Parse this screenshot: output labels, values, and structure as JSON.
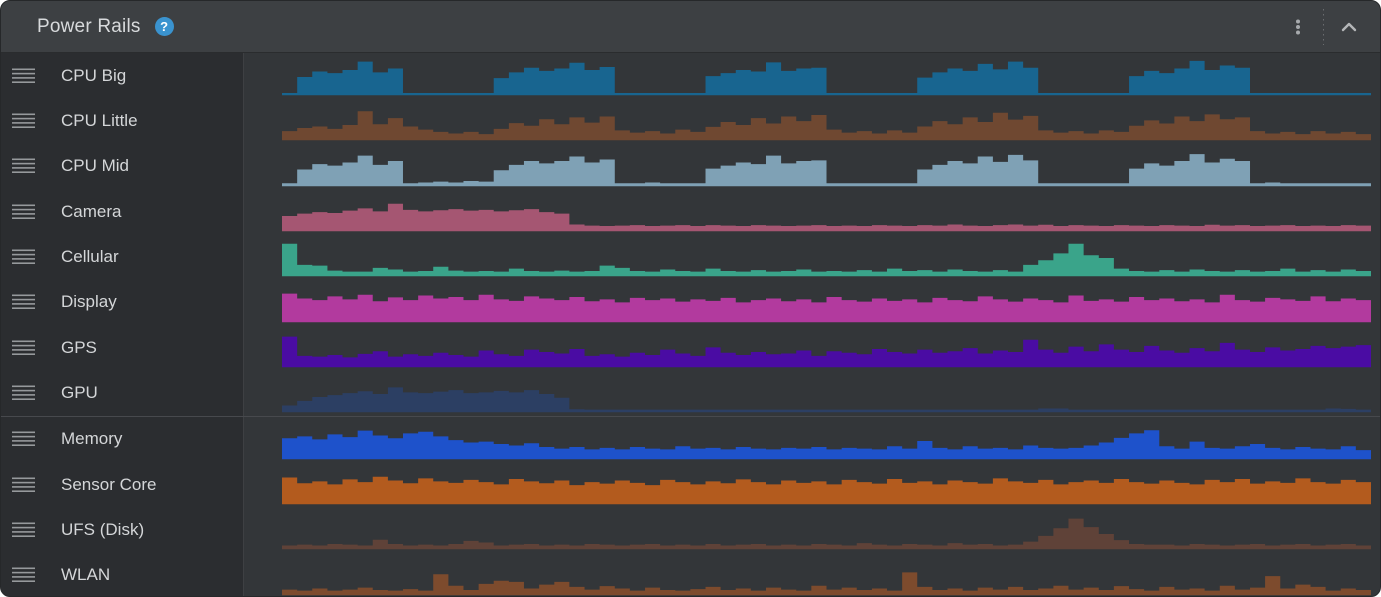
{
  "header": {
    "title": "Power Rails",
    "help_label": "?",
    "icons": {
      "help": "help-question-icon",
      "more": "kebab-menu-icon",
      "collapse": "chevron-up-icon"
    }
  },
  "colors": {
    "header_bg": "#3d4043",
    "sidebar_bg": "#2b2d30",
    "chart_bg": "#333639",
    "title_text": "#d8dadc",
    "label_text": "#d4d6d8",
    "help_icon_bg": "#3a93cf",
    "icon_gray": "#a7aaad",
    "group_separator": "#47494d"
  },
  "chart_data": {
    "type": "area",
    "title": "Power Rails",
    "units": "relative-height-percent",
    "ylim": [
      0,
      100
    ],
    "legend_position": "left-sidebar",
    "grid": false,
    "rails": [
      {
        "label": "CPU Big",
        "color": "#186590",
        "group_start": false,
        "values": [
          6,
          48,
          62,
          58,
          66,
          88,
          60,
          70,
          6,
          6,
          6,
          6,
          6,
          6,
          45,
          60,
          72,
          64,
          70,
          85,
          66,
          74,
          6,
          6,
          6,
          6,
          6,
          6,
          50,
          58,
          66,
          62,
          86,
          64,
          70,
          72,
          6,
          6,
          6,
          6,
          6,
          6,
          46,
          60,
          70,
          64,
          82,
          68,
          88,
          72,
          6,
          6,
          6,
          6,
          6,
          6,
          50,
          64,
          58,
          70,
          90,
          66,
          78,
          72,
          6,
          6,
          6,
          6,
          6,
          6,
          6,
          6
        ]
      },
      {
        "label": "CPU Little",
        "color": "#6f4831",
        "group_start": false,
        "values": [
          24,
          32,
          36,
          30,
          40,
          76,
          42,
          58,
          36,
          28,
          22,
          18,
          22,
          16,
          30,
          45,
          38,
          55,
          42,
          60,
          46,
          62,
          26,
          20,
          24,
          18,
          28,
          22,
          35,
          48,
          40,
          58,
          44,
          62,
          50,
          66,
          28,
          20,
          24,
          18,
          26,
          20,
          36,
          50,
          42,
          60,
          48,
          72,
          54,
          64,
          26,
          20,
          24,
          18,
          26,
          22,
          38,
          52,
          44,
          62,
          50,
          68,
          55,
          60,
          24,
          18,
          22,
          16,
          24,
          18,
          22,
          16
        ]
      },
      {
        "label": "CPU Mid",
        "color": "#7fa1b5",
        "group_start": false,
        "values": [
          8,
          44,
          58,
          54,
          62,
          80,
          56,
          66,
          8,
          10,
          12,
          10,
          14,
          12,
          42,
          56,
          66,
          60,
          66,
          78,
          62,
          70,
          8,
          8,
          10,
          8,
          8,
          8,
          46,
          54,
          62,
          58,
          80,
          60,
          66,
          68,
          8,
          8,
          8,
          8,
          8,
          8,
          44,
          56,
          66,
          60,
          78,
          64,
          82,
          68,
          8,
          8,
          8,
          8,
          8,
          8,
          46,
          60,
          54,
          66,
          84,
          62,
          72,
          66,
          8,
          10,
          8,
          8,
          8,
          8,
          8,
          8
        ]
      },
      {
        "label": "Camera",
        "color": "#a55672",
        "group_start": false,
        "values": [
          40,
          46,
          50,
          48,
          54,
          60,
          52,
          72,
          56,
          52,
          55,
          58,
          54,
          56,
          52,
          55,
          58,
          50,
          46,
          18,
          15,
          14,
          15,
          16,
          14,
          15,
          16,
          14,
          16,
          15,
          14,
          16,
          15,
          14,
          15,
          16,
          14,
          15,
          14,
          16,
          15,
          14,
          16,
          15,
          18,
          15,
          14,
          16,
          18,
          15,
          17,
          14,
          16,
          15,
          14,
          16,
          15,
          14,
          16,
          15,
          14,
          17,
          15,
          16,
          14,
          15,
          16,
          14,
          15,
          14,
          16,
          15
        ]
      },
      {
        "label": "Cellular",
        "color": "#3aa48a",
        "group_start": false,
        "values": [
          85,
          30,
          28,
          15,
          12,
          12,
          22,
          18,
          12,
          14,
          25,
          15,
          12,
          14,
          12,
          20,
          14,
          12,
          15,
          12,
          14,
          28,
          22,
          14,
          12,
          18,
          14,
          12,
          20,
          14,
          12,
          16,
          12,
          14,
          18,
          12,
          14,
          12,
          16,
          12,
          20,
          14,
          16,
          12,
          18,
          14,
          12,
          16,
          12,
          30,
          42,
          60,
          85,
          55,
          48,
          20,
          14,
          12,
          16,
          12,
          18,
          14,
          12,
          16,
          12,
          14,
          20,
          12,
          16,
          12,
          18,
          14
        ]
      },
      {
        "label": "Display",
        "color": "#b23a9e",
        "group_start": false,
        "values": [
          75,
          62,
          58,
          68,
          60,
          72,
          55,
          65,
          58,
          70,
          62,
          66,
          58,
          72,
          60,
          56,
          68,
          62,
          58,
          66,
          55,
          60,
          52,
          64,
          58,
          62,
          54,
          60,
          56,
          64,
          52,
          58,
          62,
          55,
          60,
          52,
          66,
          58,
          54,
          62,
          56,
          60,
          52,
          64,
          58,
          55,
          68,
          60,
          54,
          62,
          58,
          52,
          70,
          56,
          60,
          54,
          66,
          58,
          62,
          55,
          60,
          52,
          72,
          58,
          54,
          64,
          60,
          56,
          68,
          55,
          62,
          58
        ]
      },
      {
        "label": "GPS",
        "color": "#4a0ca3",
        "group_start": false,
        "values": [
          80,
          30,
          28,
          32,
          26,
          35,
          42,
          28,
          34,
          30,
          38,
          32,
          28,
          44,
          34,
          30,
          46,
          40,
          36,
          48,
          30,
          34,
          28,
          38,
          32,
          46,
          36,
          30,
          52,
          38,
          32,
          40,
          34,
          36,
          44,
          30,
          42,
          38,
          34,
          48,
          40,
          36,
          46,
          38,
          42,
          50,
          36,
          44,
          40,
          72,
          46,
          38,
          54,
          42,
          60,
          46,
          40,
          56,
          44,
          38,
          50,
          42,
          64,
          46,
          40,
          52,
          44,
          48,
          56,
          50,
          54,
          58
        ]
      },
      {
        "label": "GPU",
        "color": "#2c3f63",
        "group_start": false,
        "values": [
          18,
          30,
          40,
          45,
          50,
          55,
          48,
          65,
          52,
          50,
          54,
          58,
          50,
          52,
          56,
          52,
          58,
          48,
          38,
          8,
          7,
          7,
          7,
          7,
          7,
          7,
          7,
          7,
          7,
          7,
          7,
          7,
          7,
          7,
          7,
          7,
          7,
          7,
          7,
          7,
          7,
          7,
          7,
          7,
          7,
          7,
          7,
          7,
          7,
          7,
          10,
          10,
          7,
          7,
          7,
          7,
          7,
          7,
          7,
          7,
          7,
          7,
          7,
          7,
          7,
          7,
          7,
          7,
          7,
          10,
          9,
          7
        ]
      },
      {
        "label": "Memory",
        "color": "#1e52cb",
        "group_start": true,
        "values": [
          55,
          60,
          52,
          65,
          58,
          75,
          62,
          55,
          68,
          72,
          60,
          50,
          44,
          46,
          40,
          36,
          42,
          32,
          28,
          32,
          26,
          30,
          26,
          32,
          28,
          26,
          34,
          28,
          30,
          26,
          32,
          28,
          26,
          30,
          28,
          32,
          26,
          30,
          28,
          26,
          34,
          28,
          48,
          30,
          26,
          34,
          28,
          30,
          26,
          36,
          30,
          28,
          30,
          36,
          44,
          56,
          68,
          76,
          34,
          28,
          46,
          30,
          28,
          34,
          40,
          30,
          26,
          32,
          28,
          26,
          34,
          24
        ]
      },
      {
        "label": "Sensor Core",
        "color": "#b35b1e",
        "group_start": false,
        "values": [
          70,
          55,
          60,
          52,
          65,
          58,
          72,
          62,
          55,
          68,
          60,
          56,
          64,
          58,
          52,
          66,
          60,
          55,
          62,
          50,
          58,
          54,
          62,
          56,
          50,
          64,
          58,
          52,
          60,
          55,
          65,
          58,
          52,
          62,
          56,
          60,
          52,
          64,
          58,
          54,
          66,
          56,
          60,
          52,
          62,
          58,
          54,
          68,
          60,
          56,
          64,
          52,
          58,
          62,
          56,
          66,
          58,
          54,
          62,
          56,
          52,
          64,
          58,
          66,
          54,
          60,
          56,
          68,
          58,
          54,
          64,
          58
        ]
      },
      {
        "label": "UFS (Disk)",
        "color": "#5f4238",
        "group_start": false,
        "values": [
          10,
          12,
          10,
          14,
          12,
          10,
          25,
          14,
          10,
          12,
          10,
          14,
          22,
          18,
          10,
          12,
          14,
          10,
          12,
          10,
          14,
          12,
          10,
          12,
          14,
          10,
          12,
          10,
          14,
          10,
          12,
          14,
          10,
          12,
          10,
          14,
          12,
          10,
          16,
          12,
          10,
          14,
          12,
          10,
          16,
          12,
          14,
          10,
          12,
          20,
          35,
          55,
          80,
          58,
          40,
          24,
          14,
          12,
          12,
          10,
          14,
          12,
          10,
          12,
          14,
          10,
          12,
          14,
          10,
          12,
          14,
          10
        ]
      },
      {
        "label": "WLAN",
        "color": "#7d4b2d",
        "group_start": false,
        "values": [
          15,
          12,
          18,
          12,
          15,
          20,
          14,
          12,
          16,
          12,
          55,
          25,
          14,
          30,
          38,
          35,
          18,
          28,
          35,
          22,
          15,
          24,
          18,
          12,
          20,
          14,
          12,
          16,
          22,
          14,
          18,
          12,
          20,
          15,
          12,
          25,
          15,
          20,
          14,
          18,
          12,
          60,
          22,
          14,
          18,
          12,
          20,
          15,
          22,
          14,
          18,
          25,
          15,
          20,
          14,
          24,
          16,
          12,
          22,
          15,
          18,
          12,
          25,
          15,
          20,
          50,
          18,
          28,
          22,
          12,
          18,
          14
        ]
      }
    ]
  }
}
